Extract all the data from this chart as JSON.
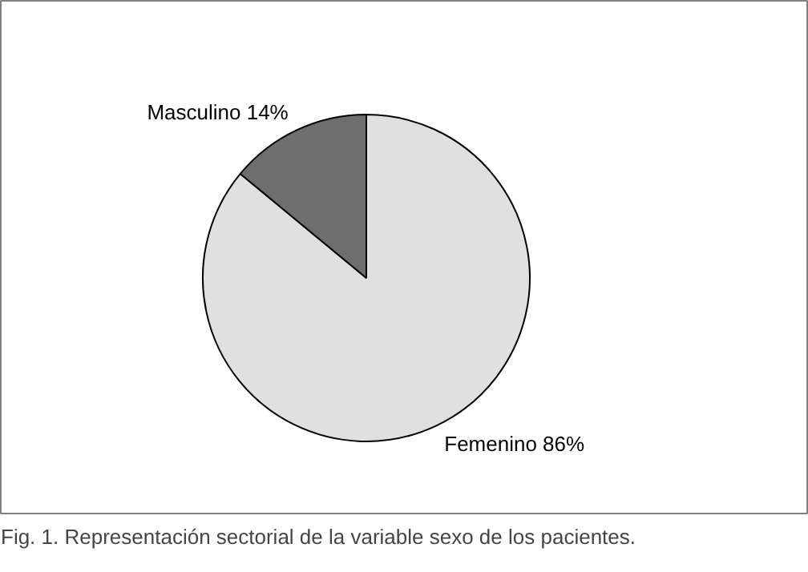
{
  "chart_data": {
    "type": "pie",
    "categories": [
      "Femenino",
      "Masculino"
    ],
    "values": [
      86,
      14
    ],
    "colors": [
      "#e0e0e0",
      "#6e6e6e"
    ],
    "value_labels": [
      "86%",
      "14%"
    ],
    "annotations": [
      "Fig. 1. Representación sectorial de la variable sexo de los pacientes."
    ]
  }
}
